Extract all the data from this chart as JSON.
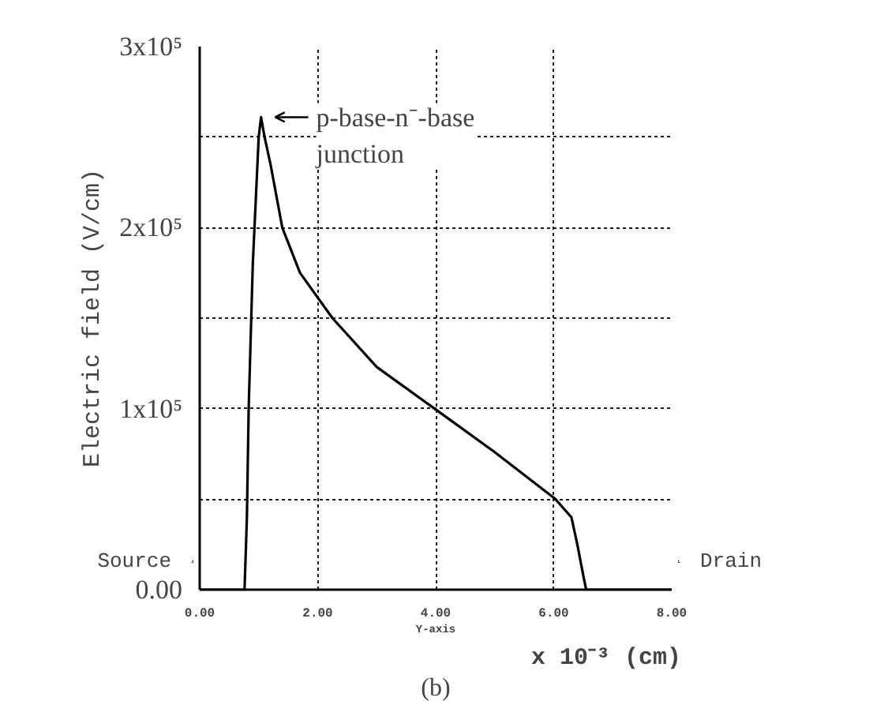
{
  "chart_data": {
    "type": "line",
    "xlabel": "Y-axis",
    "ylabel": "Electric field (V/cm)",
    "x": [
      0,
      0.5,
      0.76,
      0.8,
      0.83,
      0.9,
      1.0,
      1.04,
      1.1,
      1.2,
      1.4,
      1.7,
      2.25,
      3.0,
      3.98,
      5.0,
      6.03,
      6.3,
      6.4,
      6.5,
      6.55,
      7.0,
      8.0
    ],
    "series": [
      {
        "color": "#000000",
        "values": [
          0,
          0,
          0,
          40000,
          100000,
          180000,
          250000,
          261000,
          250000,
          235000,
          200000,
          175000,
          150000,
          123000,
          100000,
          76000,
          50000,
          40000,
          25000,
          8000,
          0,
          0,
          0
        ]
      }
    ],
    "xlim": [
      0,
      8
    ],
    "ylim": [
      0,
      300000
    ],
    "xticks": [
      {
        "value": 0,
        "label": "0.00"
      },
      {
        "value": 2,
        "label": "2.00"
      },
      {
        "value": 4,
        "label": "4.00"
      },
      {
        "value": 6,
        "label": "6.00"
      },
      {
        "value": 8,
        "label": "8.00"
      }
    ],
    "yticks": [
      {
        "value": 0,
        "label": "0.00"
      },
      {
        "value": 50000,
        "label": null
      },
      {
        "value": 100000,
        "label": "1x10⁵"
      },
      {
        "value": 150000,
        "label": null
      },
      {
        "value": 200000,
        "label": "2x10⁵"
      },
      {
        "value": 250000,
        "label": null
      },
      {
        "value": 300000,
        "label": "3x10⁵"
      }
    ],
    "grid": true,
    "line_style": "solid",
    "marker": "none",
    "annotations": [
      "x 10⁻³ (cm)",
      "(b)",
      "Source",
      "Drain",
      {
        "text": "p-base-n⁻-base\njunction",
        "x": 1.04,
        "y": 261000
      }
    ]
  }
}
